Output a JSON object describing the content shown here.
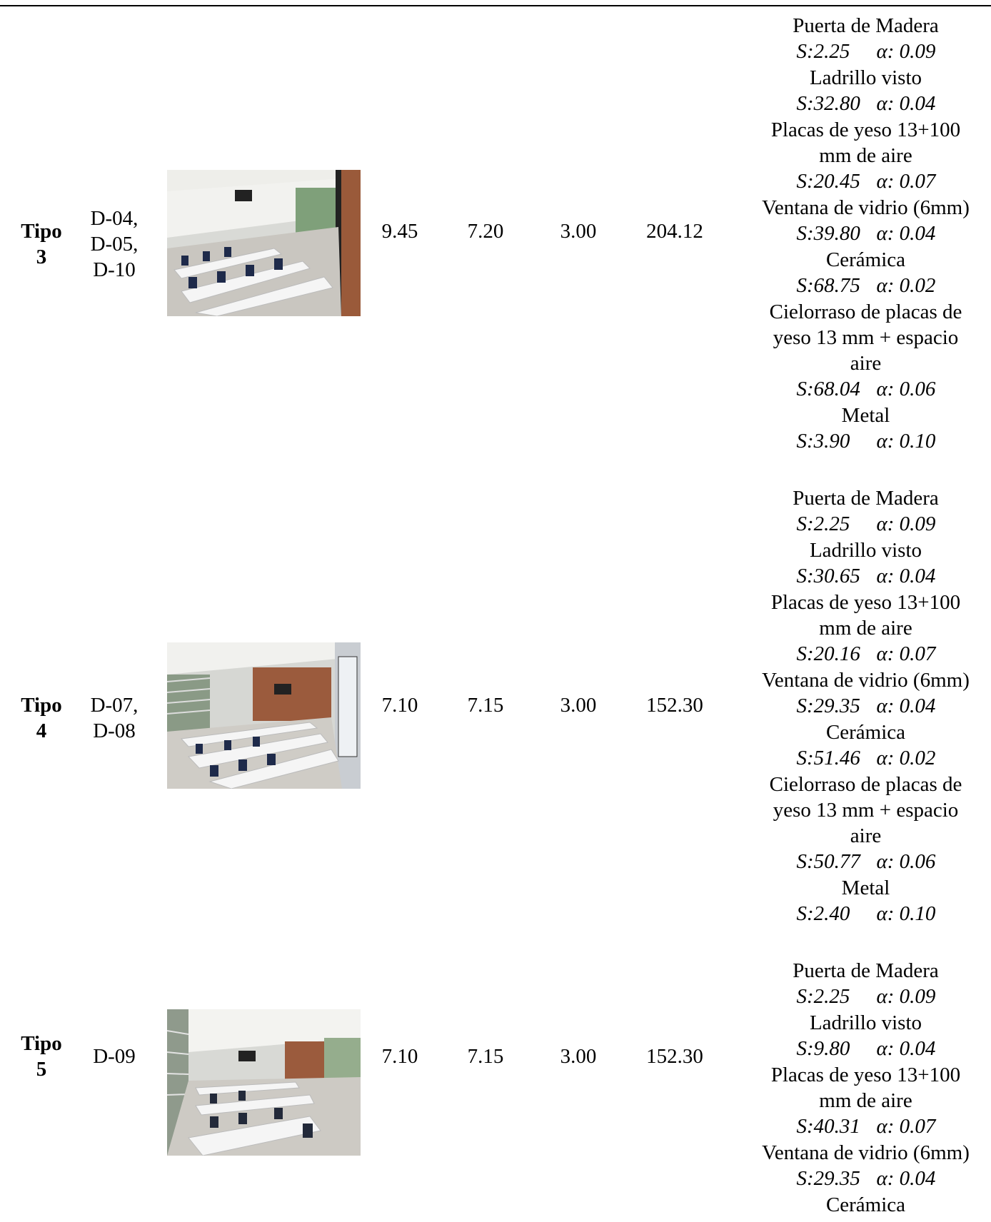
{
  "rows": [
    {
      "tipo": "Tipo\n3",
      "codes": "D-04,\nD-05,\nD-10",
      "photo_icon": "classroom-photo",
      "length": "9.45",
      "width": "7.20",
      "height": "3.00",
      "volume": "204.12",
      "materials": [
        {
          "name": "Puerta de Madera",
          "s": "S:2.25",
          "a": "α: 0.09"
        },
        {
          "name": "Ladrillo visto",
          "s": "S:32.80",
          "a": "α: 0.04"
        },
        {
          "name": "Placas de yeso 13+100\nmm de aire",
          "s": "S:20.45",
          "a": "α: 0.07"
        },
        {
          "name": "Ventana de vidrio (6mm)",
          "s": "S:39.80",
          "a": "α: 0.04"
        },
        {
          "name": "Cerámica",
          "s": "S:68.75",
          "a": "α: 0.02"
        },
        {
          "name": "Cielorraso de placas de\nyeso 13 mm + espacio\naire",
          "s": "S:68.04",
          "a": "α: 0.06"
        },
        {
          "name": "Metal",
          "s": "S:3.90",
          "a": "α: 0.10"
        }
      ]
    },
    {
      "tipo": "Tipo\n4",
      "codes": "D-07,\nD-08",
      "photo_icon": "classroom-photo",
      "length": "7.10",
      "width": "7.15",
      "height": "3.00",
      "volume": "152.30",
      "materials": [
        {
          "name": "Puerta de Madera",
          "s": "S:2.25",
          "a": "α: 0.09"
        },
        {
          "name": "Ladrillo visto",
          "s": "S:30.65",
          "a": "α: 0.04"
        },
        {
          "name": "Placas de yeso 13+100\nmm de aire",
          "s": "S:20.16",
          "a": "α: 0.07"
        },
        {
          "name": "Ventana de vidrio (6mm)",
          "s": "S:29.35",
          "a": "α: 0.04"
        },
        {
          "name": "Cerámica",
          "s": "S:51.46",
          "a": "α: 0.02"
        },
        {
          "name": "Cielorraso de placas de\nyeso 13 mm + espacio\naire",
          "s": "S:50.77",
          "a": "α: 0.06"
        },
        {
          "name": "Metal",
          "s": "S:2.40",
          "a": "α: 0.10"
        }
      ]
    },
    {
      "tipo": "Tipo\n5",
      "codes": "D-09",
      "photo_icon": "classroom-photo",
      "length": "7.10",
      "width": "7.15",
      "height": "3.00",
      "volume": "152.30",
      "materials": [
        {
          "name": "Puerta de Madera",
          "s": "S:2.25",
          "a": "α: 0.09"
        },
        {
          "name": "Ladrillo visto",
          "s": "S:9.80",
          "a": "α: 0.04"
        },
        {
          "name": "Placas de yeso 13+100\nmm de aire",
          "s": "S:40.31",
          "a": "α: 0.07"
        },
        {
          "name": "Ventana de vidrio (6mm)",
          "s": "S:29.35",
          "a": "α: 0.04"
        },
        {
          "name": "Cerámica",
          "s": "",
          "a": ""
        }
      ]
    }
  ]
}
